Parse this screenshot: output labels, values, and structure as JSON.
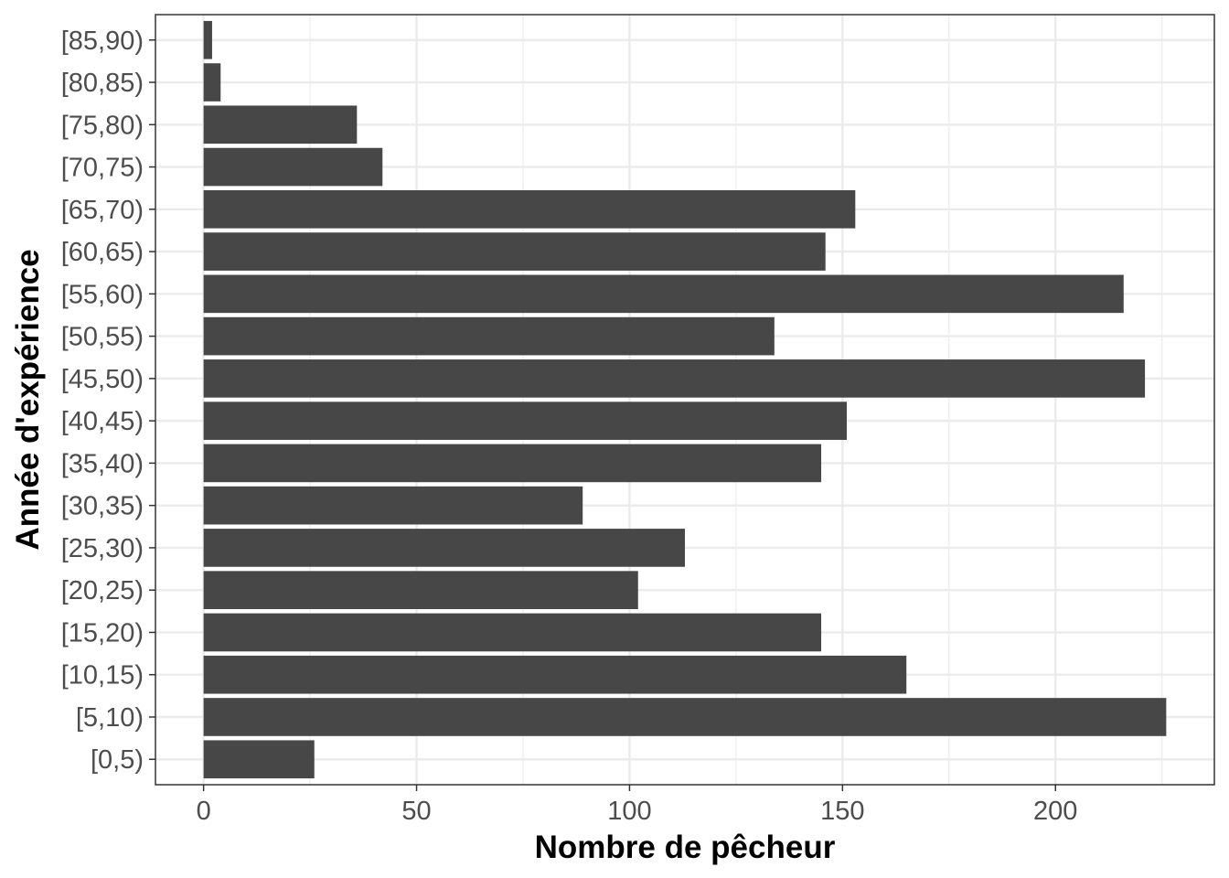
{
  "chart_data": {
    "type": "bar",
    "orientation": "horizontal",
    "xlabel": "Nombre de pêcheur",
    "ylabel": "Année d'expérience",
    "categories": [
      "[0,5)",
      "[5,10)",
      "[10,15)",
      "[15,20)",
      "[20,25)",
      "[25,30)",
      "[30,35)",
      "[35,40)",
      "[40,45)",
      "[45,50)",
      "[50,55)",
      "[55,60)",
      "[60,65)",
      "[65,70)",
      "[70,75)",
      "[75,80)",
      "[80,85)",
      "[85,90)"
    ],
    "values": [
      26,
      226,
      165,
      145,
      102,
      113,
      89,
      145,
      151,
      221,
      134,
      216,
      146,
      153,
      42,
      36,
      4,
      2
    ],
    "xlim": [
      -11.3,
      237.3
    ],
    "xticks": [
      "0",
      "50",
      "100",
      "150",
      "200"
    ],
    "grid": true,
    "bar_color": "#474747",
    "grid_color": "#ebebeb",
    "panel_border_color": "#333333"
  }
}
